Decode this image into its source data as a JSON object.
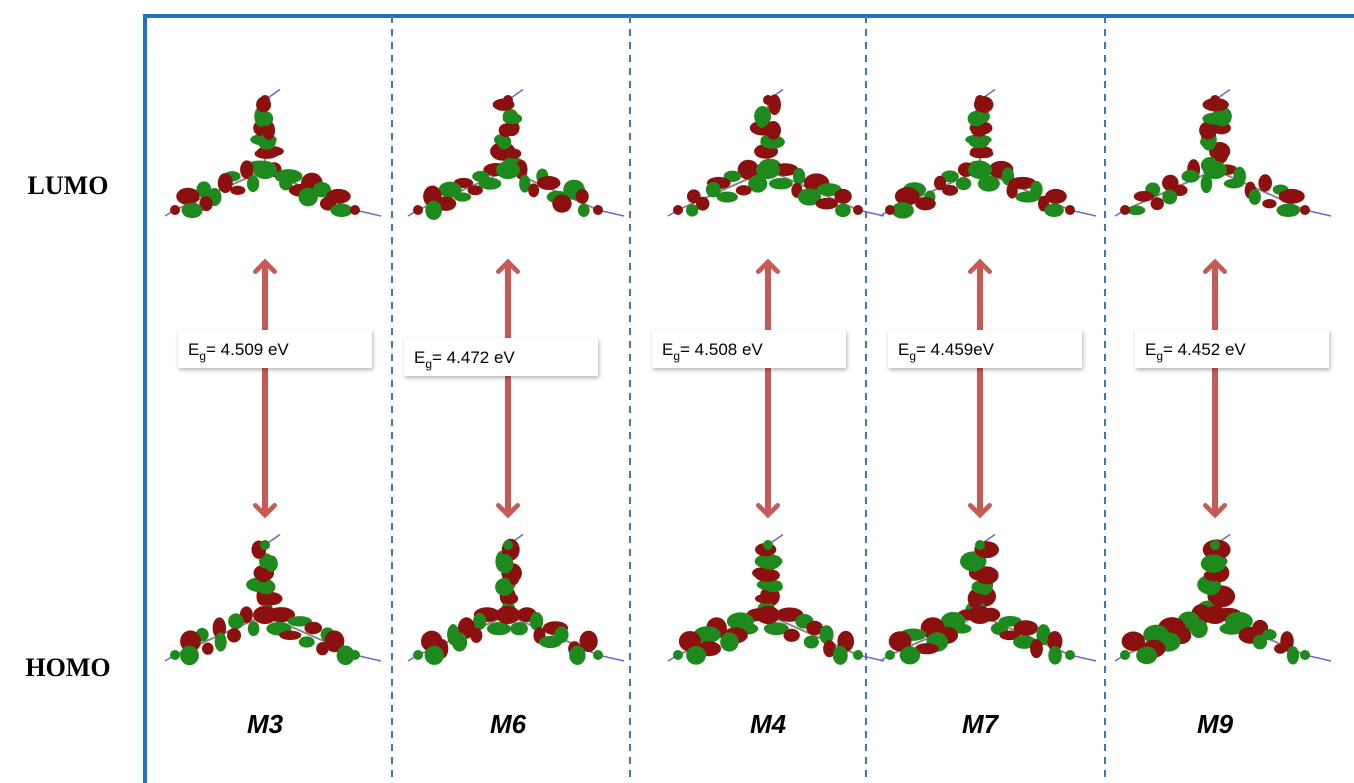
{
  "rows": {
    "top": "LUMO",
    "bottom": "HOMO"
  },
  "columns": [
    {
      "name": "M3",
      "gap_symbol": "E",
      "gap_subscript": "g",
      "gap_text": "= 4.509 eV"
    },
    {
      "name": "M6",
      "gap_symbol": "E",
      "gap_subscript": "g",
      "gap_text": "= 4.472 eV"
    },
    {
      "name": "M4",
      "gap_symbol": "E",
      "gap_subscript": "g",
      "gap_text": "= 4.508 eV"
    },
    {
      "name": "M7",
      "gap_symbol": "E",
      "gap_subscript": "g",
      "gap_text": "= 4.459eV"
    },
    {
      "name": "M9",
      "gap_symbol": "E",
      "gap_subscript": "g",
      "gap_text": "= 4.452 eV"
    }
  ]
}
